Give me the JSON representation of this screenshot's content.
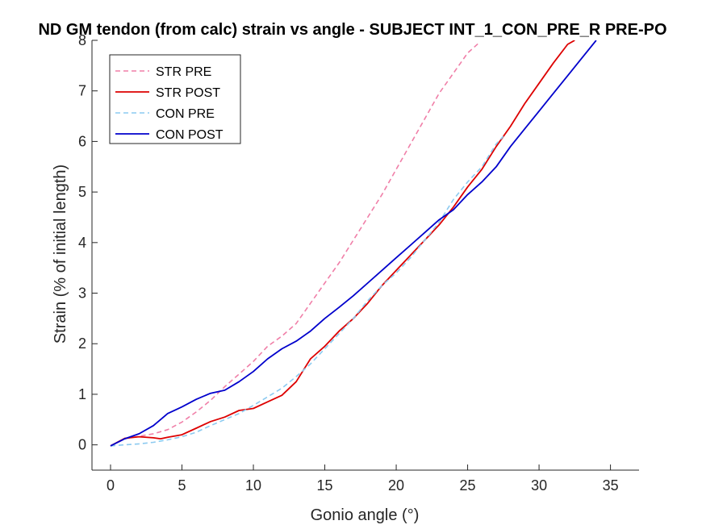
{
  "chart_data": {
    "type": "line",
    "title": "ND GM tendon (from calc) strain vs angle - SUBJECT INT_1_CON_PRE_R PRE-PO",
    "xlabel": "Gonio angle (°)",
    "ylabel": "Strain (% of initial length)",
    "xlim": [
      -1.3,
      37
    ],
    "ylim": [
      -0.5,
      8
    ],
    "xticks": [
      0,
      5,
      10,
      15,
      20,
      25,
      30,
      35
    ],
    "yticks": [
      0,
      1,
      2,
      3,
      4,
      5,
      6,
      7,
      8
    ],
    "grid": false,
    "legend_position": "top-left",
    "series": [
      {
        "name": "STR PRE",
        "color": "#f07fa8",
        "dash": "dashed",
        "x": [
          0,
          1,
          2,
          3,
          4,
          5,
          6,
          7,
          8,
          9,
          10,
          11,
          12,
          13,
          14,
          15,
          16,
          17,
          18,
          19,
          20,
          21,
          22,
          23,
          24,
          25,
          25.8
        ],
        "y": [
          -0.02,
          0.12,
          0.17,
          0.22,
          0.3,
          0.45,
          0.65,
          0.88,
          1.15,
          1.4,
          1.65,
          1.95,
          2.15,
          2.4,
          2.8,
          3.2,
          3.6,
          4.05,
          4.5,
          4.95,
          5.45,
          5.95,
          6.45,
          6.95,
          7.35,
          7.75,
          7.95
        ]
      },
      {
        "name": "STR POST",
        "color": "#dd0000",
        "dash": "solid",
        "x": [
          0,
          1,
          2,
          3,
          3.5,
          4,
          5,
          6,
          7,
          8,
          9,
          10,
          11,
          12,
          13,
          14,
          15,
          16,
          17,
          18,
          19,
          20,
          21,
          22,
          23,
          24,
          25,
          26,
          27,
          28,
          29,
          30,
          31,
          32,
          32.5
        ],
        "y": [
          -0.02,
          0.13,
          0.16,
          0.14,
          0.12,
          0.15,
          0.2,
          0.33,
          0.46,
          0.55,
          0.68,
          0.72,
          0.85,
          0.98,
          1.25,
          1.7,
          1.95,
          2.25,
          2.5,
          2.8,
          3.15,
          3.45,
          3.75,
          4.05,
          4.35,
          4.7,
          5.1,
          5.45,
          5.9,
          6.3,
          6.75,
          7.15,
          7.55,
          7.92,
          8.0
        ]
      },
      {
        "name": "CON PRE",
        "color": "#8ccaf0",
        "dash": "dashed",
        "x": [
          0,
          1,
          2,
          3,
          4,
          5,
          6,
          7,
          8,
          9,
          10,
          11,
          12,
          13,
          14,
          15,
          16,
          17,
          18,
          19,
          20,
          21,
          22,
          23,
          24,
          25,
          26,
          27,
          27.5
        ],
        "y": [
          -0.02,
          0.0,
          0.02,
          0.05,
          0.1,
          0.16,
          0.25,
          0.38,
          0.5,
          0.62,
          0.78,
          0.95,
          1.12,
          1.35,
          1.6,
          1.9,
          2.2,
          2.5,
          2.85,
          3.15,
          3.4,
          3.7,
          4.05,
          4.4,
          4.85,
          5.2,
          5.5,
          5.95,
          6.1
        ]
      },
      {
        "name": "CON POST",
        "color": "#0000cc",
        "dash": "solid",
        "x": [
          0,
          1,
          2,
          3,
          3.5,
          4,
          5,
          6,
          7,
          8,
          9,
          10,
          11,
          12,
          13,
          14,
          15,
          16,
          17,
          18,
          19,
          20,
          21,
          22,
          23,
          24,
          25,
          26,
          27,
          28,
          29,
          30,
          31,
          32,
          33,
          34
        ],
        "y": [
          -0.02,
          0.12,
          0.22,
          0.38,
          0.5,
          0.62,
          0.75,
          0.9,
          1.02,
          1.08,
          1.25,
          1.45,
          1.7,
          1.9,
          2.05,
          2.25,
          2.5,
          2.72,
          2.95,
          3.2,
          3.45,
          3.7,
          3.95,
          4.2,
          4.45,
          4.65,
          4.95,
          5.2,
          5.5,
          5.9,
          6.25,
          6.6,
          6.95,
          7.3,
          7.65,
          8.0
        ]
      }
    ]
  }
}
